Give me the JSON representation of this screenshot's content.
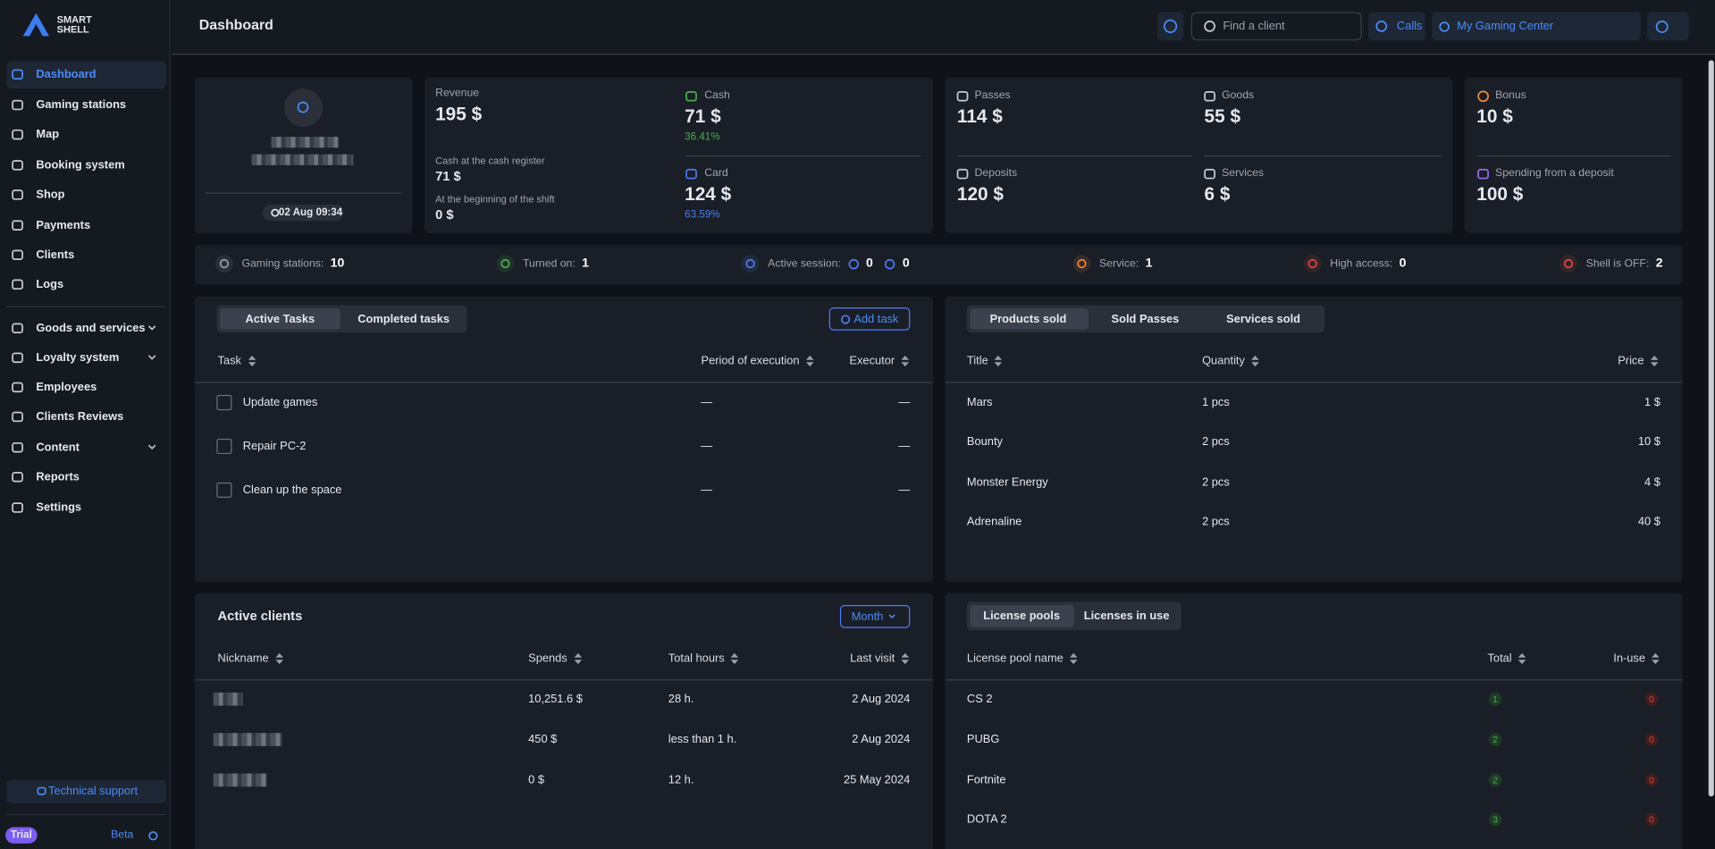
{
  "brand": {
    "line1": "SMART",
    "line2": "SHELL"
  },
  "sidebar": {
    "items": [
      "Dashboard",
      "Gaming stations",
      "Map",
      "Booking system",
      "Shop",
      "Payments",
      "Clients",
      "Logs",
      "Goods and services",
      "Loyalty system",
      "Employees",
      "Clients Reviews",
      "Content",
      "Reports",
      "Settings"
    ],
    "support": "Technical support",
    "plan": "Trial",
    "beta": "Beta"
  },
  "header": {
    "title": "Dashboard",
    "search": "Find a client",
    "calls": "Calls",
    "location": "My Gaming Center"
  },
  "profile": {
    "shift_start": "02 Aug 09:34"
  },
  "revenue": {
    "label": "Revenue",
    "value": "195 $",
    "register_label": "Cash at the cash register",
    "register_value": "71 $",
    "shift_label": "At the beginning of the shift",
    "shift_value": "0 $"
  },
  "payments": [
    {
      "label": "Cash",
      "value": "71 $",
      "share": "36.41%"
    },
    {
      "label": "Card",
      "value": "124 $",
      "share": "63.59%"
    }
  ],
  "sales": [
    {
      "label": "Passes",
      "value": "114 $"
    },
    {
      "label": "Goods",
      "value": "55 $"
    },
    {
      "label": "Deposits",
      "value": "120 $"
    },
    {
      "label": "Services",
      "value": "6 $"
    }
  ],
  "bonus": [
    {
      "label": "Bonus",
      "value": "10 $"
    },
    {
      "label": "Spending from a deposit",
      "value": "100 $"
    }
  ],
  "status": [
    {
      "label": "Gaming stations:",
      "values": [
        10
      ]
    },
    {
      "label": "Turned on:",
      "values": [
        1
      ]
    },
    {
      "label": "Active session:",
      "values": [
        0,
        0
      ]
    },
    {
      "label": "Service:",
      "values": [
        1
      ]
    },
    {
      "label": "High access:",
      "values": [
        0
      ]
    },
    {
      "label": "Shell is OFF:",
      "values": [
        2
      ]
    }
  ],
  "tasks": {
    "tabs": [
      "Active Tasks",
      "Completed tasks"
    ],
    "add": "Add task",
    "columns": [
      "Task",
      "Period of execution",
      "Executor"
    ],
    "rows": [
      [
        "Update games",
        "—",
        "—"
      ],
      [
        "Repair PC-2",
        "—",
        "—"
      ],
      [
        "Clean up the space",
        "—",
        "—"
      ]
    ]
  },
  "products": {
    "tabs": [
      "Products sold",
      "Sold Passes",
      "Services sold"
    ],
    "columns": [
      "Title",
      "Quantity",
      "Price"
    ],
    "rows": [
      [
        "Mars",
        "1 pcs",
        "1 $"
      ],
      [
        "Bounty",
        "2 pcs",
        "10 $"
      ],
      [
        "Monster Energy",
        "2 pcs",
        "4 $"
      ],
      [
        "Adrenaline",
        "2 pcs",
        "40 $"
      ]
    ]
  },
  "clients": {
    "title": "Active clients",
    "period": "Month",
    "columns": [
      "Nickname",
      "Spends",
      "Total hours",
      "Last visit"
    ],
    "rows": [
      {
        "spends": "10,251.6 $",
        "hours": "28 h.",
        "last_visit": "2 Aug 2024"
      },
      {
        "spends": "450 $",
        "hours": "less than 1 h.",
        "last_visit": "2 Aug 2024"
      },
      {
        "spends": "0 $",
        "hours": "12 h.",
        "last_visit": "25 May 2024"
      }
    ]
  },
  "licenses": {
    "tabs": [
      "License pools",
      "Licenses in use"
    ],
    "columns": [
      "License pool name",
      "Total",
      "In-use"
    ],
    "rows": [
      [
        "CS 2",
        1,
        0
      ],
      [
        "PUBG",
        2,
        0
      ],
      [
        "Fortnite",
        2,
        0
      ],
      [
        "DOTA 2",
        3,
        0
      ]
    ]
  }
}
